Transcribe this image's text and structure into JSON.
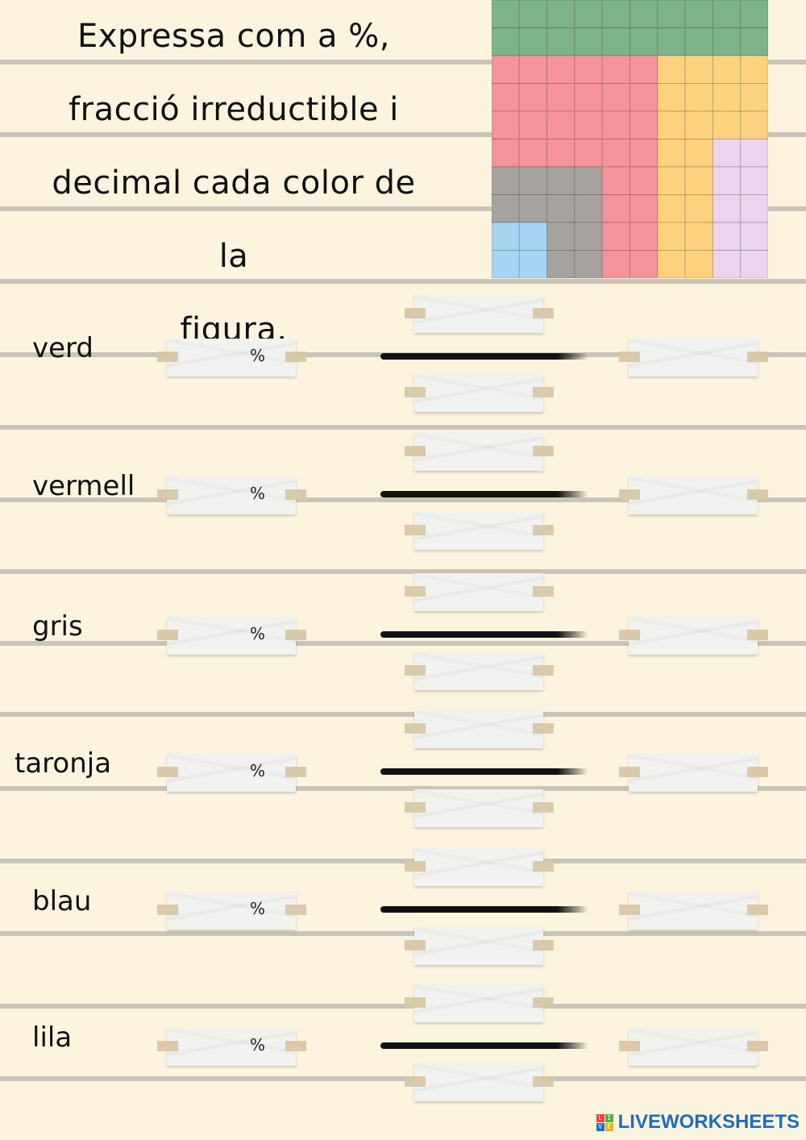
{
  "title": {
    "lines": [
      "Expressa com a %,",
      "fracció irreductible i",
      "decimal cada color de la",
      "figura."
    ]
  },
  "figure": {
    "colors": {
      "green": "#7fb38a",
      "red": "#f4939a",
      "orange": "#fcd27f",
      "gray": "#a6a39e",
      "blue": "#a6d4f2",
      "purple": "#ead4ee"
    }
  },
  "rows": [
    {
      "label": "verd",
      "percent_symbol": "%"
    },
    {
      "label": "vermell",
      "percent_symbol": "%"
    },
    {
      "label": "gris",
      "percent_symbol": "%"
    },
    {
      "label": "taronja",
      "percent_symbol": "%"
    },
    {
      "label": "blau",
      "percent_symbol": "%"
    },
    {
      "label": "lila",
      "percent_symbol": "%"
    }
  ],
  "footer": {
    "brand": "LIVEWORKSHEETS",
    "brand_color": "#1f6bbf"
  }
}
